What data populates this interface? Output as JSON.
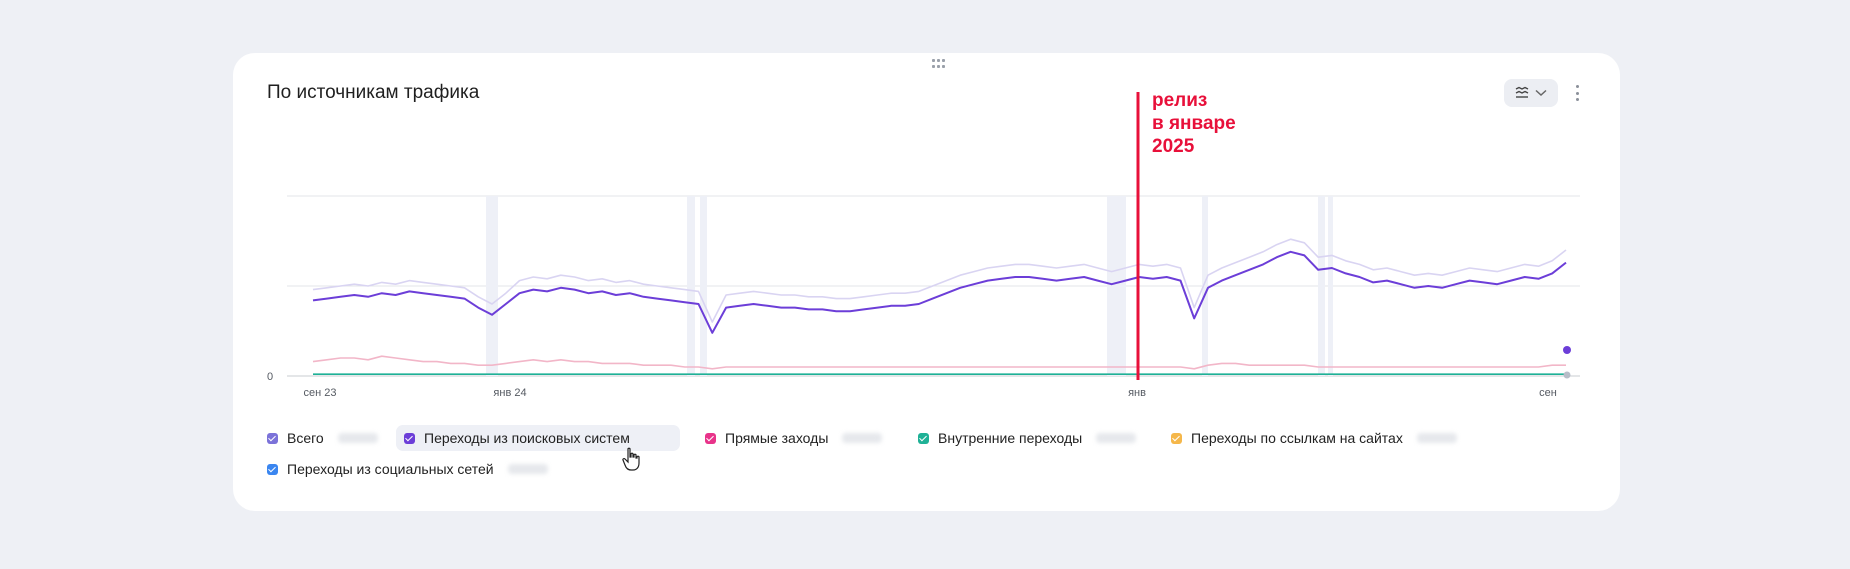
{
  "card": {
    "title": "По источникам трафика"
  },
  "icons": {
    "controls": "chart-settings-icon",
    "dropdown": "chevron-down-icon",
    "menu": "more-vertical-icon",
    "drag": "drag-handle-icon"
  },
  "annotation": {
    "line1": "релиз",
    "line2": "в январе",
    "line3": "2025",
    "color": "#e8103a"
  },
  "chart_data": {
    "type": "line",
    "y_tick_labels": [
      "0"
    ],
    "x_tick_labels": [
      "сен 23",
      "янв 24",
      "янв",
      "сен"
    ],
    "grid": true,
    "series": [
      {
        "name": "Всего",
        "color": "#d9d4f2",
        "values": [
          48,
          49,
          50,
          51,
          50,
          52,
          51,
          53,
          52,
          51,
          50,
          49,
          44,
          40,
          46,
          53,
          55,
          54,
          56,
          55,
          53,
          54,
          52,
          53,
          51,
          50,
          49,
          48,
          47,
          30,
          45,
          46,
          47,
          46,
          45,
          45,
          44,
          44,
          43,
          43,
          44,
          45,
          46,
          46,
          47,
          50,
          53,
          56,
          58,
          60,
          61,
          62,
          62,
          61,
          60,
          61,
          62,
          60,
          58,
          60,
          62,
          61,
          62,
          60,
          38,
          56,
          60,
          63,
          66,
          69,
          73,
          76,
          74,
          66,
          67,
          64,
          62,
          59,
          60,
          58,
          56,
          57,
          56,
          58,
          60,
          59,
          58,
          60,
          62,
          61,
          64,
          70
        ]
      },
      {
        "name": "Переходы из поисковых систем",
        "color": "#6c3ed8",
        "values": [
          42,
          43,
          44,
          45,
          44,
          46,
          45,
          47,
          46,
          45,
          44,
          43,
          38,
          34,
          40,
          46,
          48,
          47,
          49,
          48,
          46,
          47,
          45,
          46,
          44,
          43,
          42,
          41,
          40,
          24,
          38,
          39,
          40,
          39,
          38,
          38,
          37,
          37,
          36,
          36,
          37,
          38,
          39,
          39,
          40,
          43,
          46,
          49,
          51,
          53,
          54,
          55,
          55,
          54,
          53,
          54,
          55,
          53,
          51,
          53,
          55,
          54,
          55,
          53,
          32,
          49,
          53,
          56,
          59,
          62,
          66,
          69,
          67,
          59,
          60,
          57,
          55,
          52,
          53,
          51,
          49,
          50,
          49,
          51,
          53,
          52,
          51,
          53,
          55,
          54,
          57,
          63
        ]
      },
      {
        "name": "Прямые заходы",
        "color": "#f2b6c8",
        "values": [
          8,
          9,
          10,
          10,
          9,
          11,
          10,
          9,
          8,
          8,
          7,
          7,
          6,
          6,
          7,
          8,
          9,
          8,
          9,
          8,
          8,
          7,
          7,
          7,
          6,
          6,
          6,
          5,
          5,
          4,
          5,
          5,
          5,
          5,
          5,
          5,
          5,
          5,
          5,
          5,
          5,
          5,
          5,
          5,
          5,
          5,
          5,
          5,
          5,
          5,
          5,
          5,
          5,
          5,
          5,
          5,
          5,
          5,
          5,
          5,
          5,
          5,
          5,
          5,
          4,
          6,
          7,
          7,
          6,
          6,
          6,
          6,
          6,
          5,
          5,
          5,
          5,
          5,
          5,
          5,
          5,
          5,
          5,
          5,
          5,
          5,
          5,
          5,
          5,
          5,
          6,
          6
        ]
      },
      {
        "name": "Внутренние переходы",
        "color": "#1fb196",
        "values": [
          1,
          1,
          1,
          1,
          1,
          1,
          1,
          1,
          1,
          1,
          1,
          1,
          1,
          1,
          1,
          1,
          1,
          1,
          1,
          1,
          1,
          1,
          1,
          1,
          1,
          1,
          1,
          1,
          1,
          1,
          1,
          1,
          1,
          1,
          1,
          1,
          1,
          1,
          1,
          1,
          1,
          1,
          1,
          1,
          1,
          1,
          1,
          1,
          1,
          1,
          1,
          1,
          1,
          1,
          1,
          1,
          1,
          1,
          1,
          1,
          1,
          1,
          1,
          1,
          1,
          1,
          1,
          1,
          1,
          1,
          1,
          1,
          1,
          1,
          1,
          1,
          1,
          1,
          1,
          1,
          1,
          1,
          1,
          1,
          1,
          1,
          1,
          1,
          1,
          1,
          1,
          1
        ]
      },
      {
        "name": "Переходы по ссылкам на сайтах",
        "color": "#f5b74a",
        "values": []
      },
      {
        "name": "Переходы из социальных сетей",
        "color": "#3a86f0",
        "values": []
      }
    ],
    "annotation_x_label": "янв"
  },
  "legend": {
    "items": [
      {
        "label": "Всего",
        "color": "#7b72d9"
      },
      {
        "label": "Переходы из поисковых систем",
        "color": "#6c3ed8"
      },
      {
        "label": "Прямые заходы",
        "color": "#e8338a"
      },
      {
        "label": "Внутренние переходы",
        "color": "#1fb196"
      },
      {
        "label": "Переходы по ссылкам на сайтах",
        "color": "#f5b74a"
      },
      {
        "label": "Переходы из социальных сетей",
        "color": "#3a86f0"
      }
    ]
  }
}
